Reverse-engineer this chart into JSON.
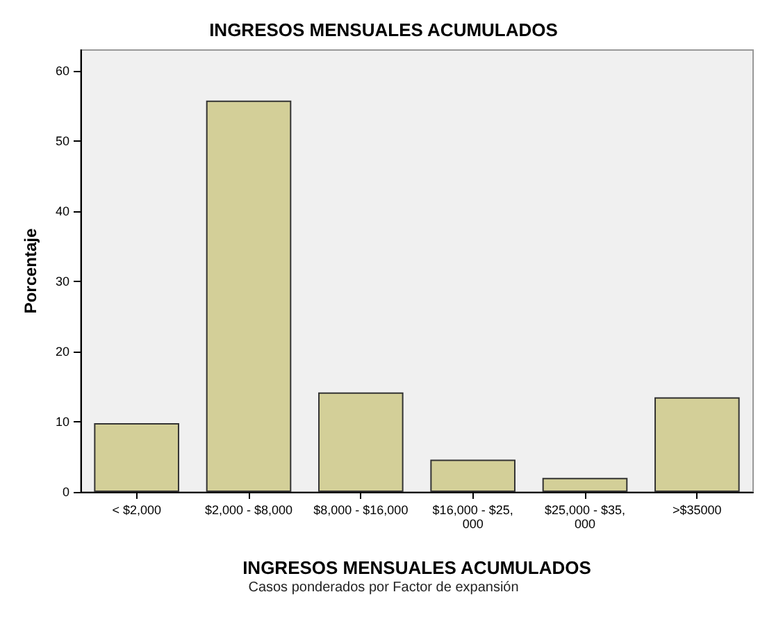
{
  "chart_data": {
    "type": "bar",
    "title": "INGRESOS MENSUALES ACUMULADOS",
    "xlabel": "INGRESOS MENSUALES ACUMULADOS",
    "ylabel": "Porcentaje",
    "categories": [
      "< $2,000",
      "$2,000 - $8,000",
      "$8,000 - $16,000",
      "$16,000 - $25,000",
      "$25,000 - $35,000",
      ">$35000"
    ],
    "values": [
      9.8,
      55.8,
      14.2,
      4.6,
      2.0,
      13.5
    ],
    "color": "#d3cf98",
    "ylim": [
      0,
      63
    ],
    "yticks": [
      0,
      10,
      20,
      30,
      40,
      50,
      60
    ],
    "grid": false,
    "annotations": [
      "Casos ponderados por Factor de expansión"
    ]
  }
}
